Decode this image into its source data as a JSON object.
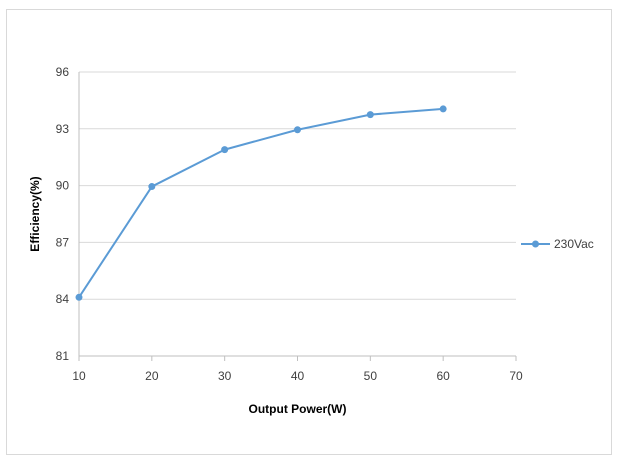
{
  "chart_data": {
    "type": "line",
    "title": "",
    "xlabel": "Output Power(W)",
    "ylabel": "Efficiency(%)",
    "xlim": [
      10,
      70
    ],
    "ylim": [
      81,
      96
    ],
    "xticks": [
      "10",
      "20",
      "30",
      "40",
      "50",
      "60",
      "70"
    ],
    "yticks": [
      "81",
      "84",
      "87",
      "90",
      "93",
      "96"
    ],
    "grid": true,
    "legend_position": "right",
    "series": [
      {
        "name": "230Vac",
        "color": "#5b9bd5",
        "x": [
          10,
          20,
          30,
          40,
          50,
          60
        ],
        "y": [
          84.1,
          89.95,
          91.9,
          92.95,
          93.75,
          94.05
        ]
      }
    ]
  }
}
